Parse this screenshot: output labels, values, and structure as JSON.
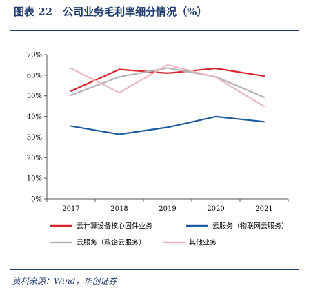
{
  "figure": {
    "title": "图表 22　公司业务毛利率细分情况（%）",
    "source": "资料来源：Wind，华创证券"
  },
  "chart_data": {
    "type": "line",
    "title": "",
    "xlabel": "",
    "ylabel": "",
    "x": [
      "2017",
      "2018",
      "2019",
      "2020",
      "2021"
    ],
    "ylim": [
      0,
      70
    ],
    "y_ticks": [
      "0%",
      "10%",
      "20%",
      "30%",
      "40%",
      "50%",
      "60%",
      "70%"
    ],
    "grid": false,
    "legend_position": "bottom",
    "series": [
      {
        "name": "云计算设备核心固件业务",
        "color": "#d7262b",
        "values": [
          52.3,
          62.8,
          61.0,
          63.3,
          59.6
        ]
      },
      {
        "name": "云服务（物联网云服务）",
        "color": "#1f5c9e",
        "values": [
          35.3,
          31.3,
          34.7,
          39.9,
          37.4
        ]
      },
      {
        "name": "云服务（政企云服务）",
        "color": "#b3b3b3",
        "values": [
          50.3,
          59.2,
          63.5,
          59.2,
          49.3
        ]
      },
      {
        "name": "其他业务",
        "color": "#e8b8bc",
        "values": [
          63.3,
          51.5,
          65.0,
          59.0,
          44.8
        ]
      }
    ]
  }
}
